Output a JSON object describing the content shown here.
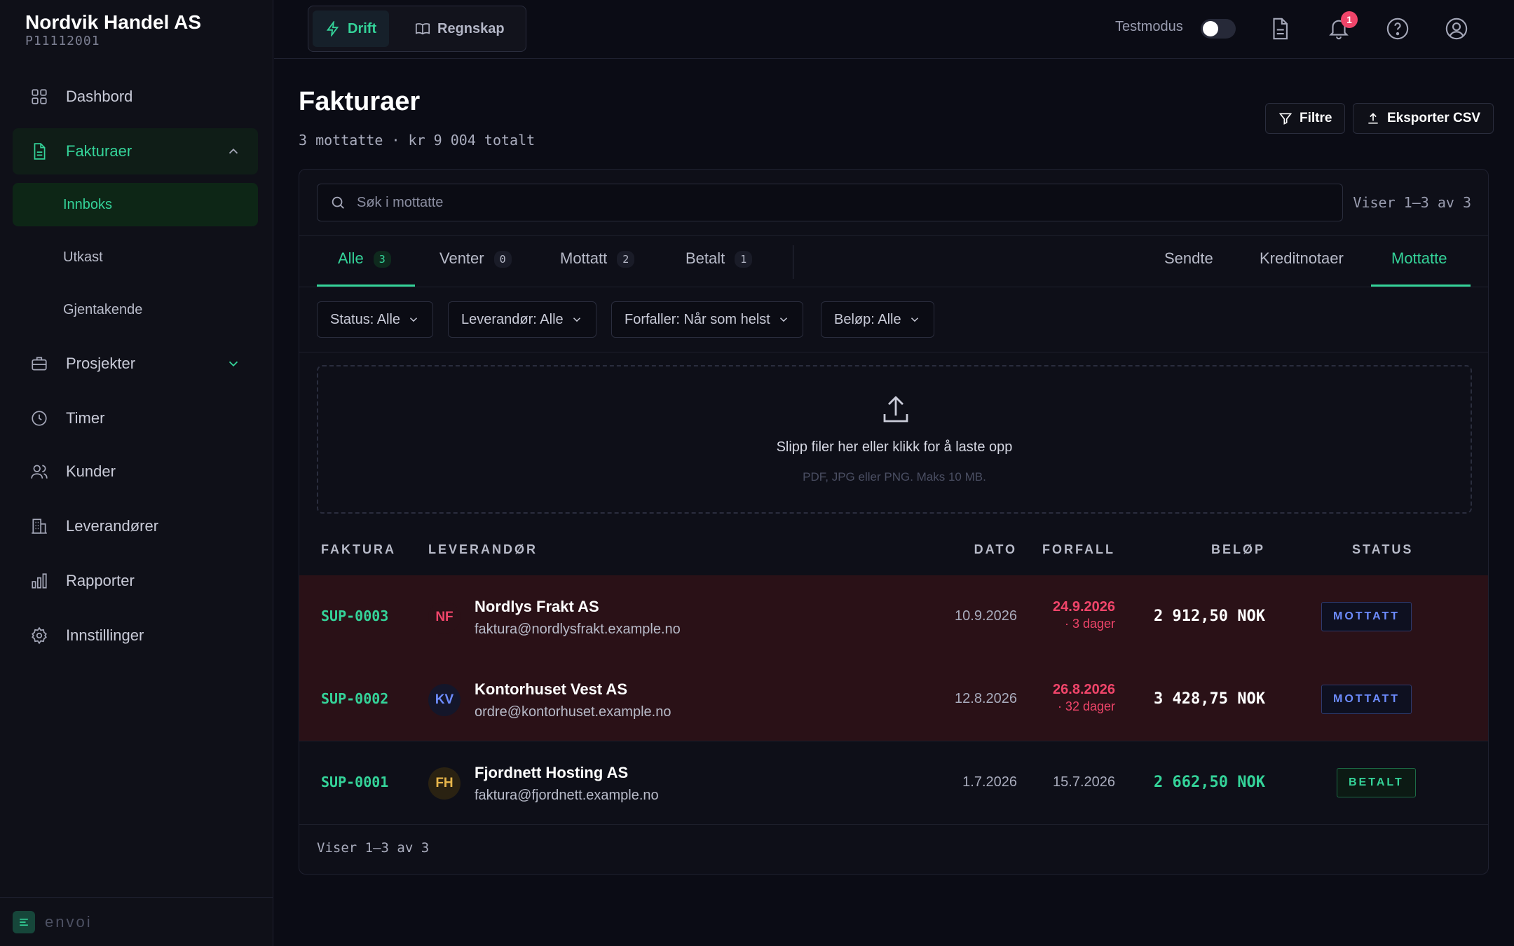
{
  "org": {
    "name": "Nordvik Handel AS",
    "id": "P11112001"
  },
  "sidebar": {
    "items": [
      {
        "label": "Dashbord",
        "icon": "grid-icon"
      },
      {
        "label": "Fakturaer",
        "icon": "document-icon"
      },
      {
        "label": "Prosjekter",
        "icon": "briefcase-icon"
      },
      {
        "label": "Timer",
        "icon": "clock-icon"
      },
      {
        "label": "Kunder",
        "icon": "users-icon"
      },
      {
        "label": "Leverandører",
        "icon": "building-icon"
      },
      {
        "label": "Rapporter",
        "icon": "bar-chart-icon"
      },
      {
        "label": "Innstillinger",
        "icon": "gear-icon"
      }
    ],
    "sub_items": [
      "Innboks",
      "Utkast",
      "Gjentakende"
    ],
    "footer_brand": "envoi"
  },
  "topbar": {
    "modes": [
      "Drift",
      "Regnskap"
    ],
    "testmode_label": "Testmodus",
    "notification_count": "1"
  },
  "page": {
    "title": "Fakturaer",
    "subtitle": "3 mottatte · kr 9 004 totalt",
    "filter_button": "Filtre",
    "export_button": "Eksporter CSV"
  },
  "search": {
    "placeholder": "Søk i mottatte",
    "range": "Viser 1–3 av 3"
  },
  "tabs": [
    {
      "label": "Alle",
      "count": "3"
    },
    {
      "label": "Venter",
      "count": "0"
    },
    {
      "label": "Mottatt",
      "count": "2"
    },
    {
      "label": "Betalt",
      "count": "1"
    }
  ],
  "view_tabs": [
    "Sendte",
    "Kreditnotaer",
    "Mottatte"
  ],
  "filters": [
    "Status: Alle",
    "Leverandør: Alle",
    "Forfaller: Når som helst",
    "Beløp: Alle"
  ],
  "dropzone": {
    "text": "Slipp filer her eller klikk for å laste opp",
    "hint": "PDF, JPG eller PNG. Maks 10 MB."
  },
  "table": {
    "headers": [
      "FAKTURA",
      "LEVERANDØR",
      "DATO",
      "FORFALL",
      "BELØP",
      "STATUS"
    ],
    "rows": [
      {
        "id": "SUP-0003",
        "initials": "NF",
        "vendor": "Nordlys Frakt AS",
        "email": "faktura@nordlysfrakt.example.no",
        "date": "10.9.2026",
        "due": "24.9.2026",
        "due_note": "· 3 dager",
        "amount": "2 912,50 NOK",
        "status": "MOTTATT"
      },
      {
        "id": "SUP-0002",
        "initials": "KV",
        "vendor": "Kontorhuset Vest AS",
        "email": "ordre@kontorhuset.example.no",
        "date": "12.8.2026",
        "due": "26.8.2026",
        "due_note": "· 32 dager",
        "amount": "3 428,75 NOK",
        "status": "MOTTATT"
      },
      {
        "id": "SUP-0001",
        "initials": "FH",
        "vendor": "Fjordnett Hosting AS",
        "email": "faktura@fjordnett.example.no",
        "date": "1.7.2026",
        "due": "15.7.2026",
        "due_note": "",
        "amount": "2 662,50 NOK",
        "status": "BETALT"
      }
    ],
    "footer_range": "Viser 1–3 av 3"
  },
  "colors": {
    "accent": "#34d399",
    "overdue": "#f0456a",
    "received": "#6d8cff",
    "overdue_row": "#2a1117"
  }
}
